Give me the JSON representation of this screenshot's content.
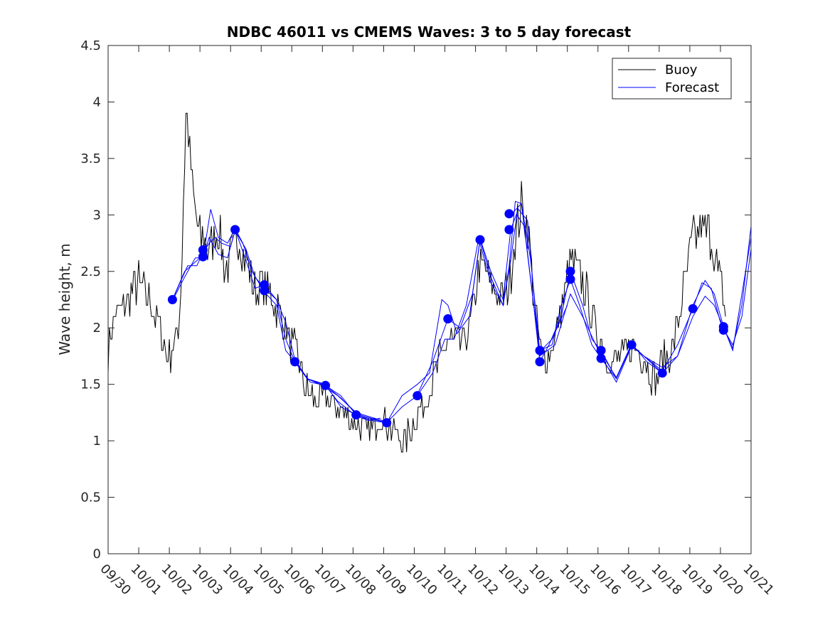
{
  "chart_data": {
    "type": "line",
    "title": "NDBC 46011 vs CMEMS Waves: 3 to 5 day forecast",
    "xlabel": "",
    "ylabel": "Wave height, m",
    "xlim": [
      0,
      21
    ],
    "ylim": [
      0,
      4.5
    ],
    "xticks": [
      0,
      1,
      2,
      3,
      4,
      5,
      6,
      7,
      8,
      9,
      10,
      11,
      12,
      13,
      14,
      15,
      16,
      17,
      18,
      19,
      20,
      21
    ],
    "xtick_labels": [
      "09/30",
      "10/01",
      "10/02",
      "10/03",
      "10/04",
      "10/05",
      "10/06",
      "10/07",
      "10/08",
      "10/09",
      "10/10",
      "10/11",
      "10/12",
      "10/13",
      "10/14",
      "10/15",
      "10/16",
      "10/17",
      "10/18",
      "10/19",
      "10/20",
      "10/21"
    ],
    "yticks": [
      0,
      0.5,
      1,
      1.5,
      2,
      2.5,
      3,
      3.5,
      4,
      4.5
    ],
    "ytick_labels": [
      "0",
      "0.5",
      "1",
      "1.5",
      "2",
      "2.5",
      "3",
      "3.5",
      "4",
      "4.5"
    ],
    "grid": false,
    "legend": {
      "position": "top-right",
      "entries": [
        "Buoy",
        "Forecast"
      ]
    },
    "colors": {
      "buoy": "#000000",
      "forecast": "#0000ff",
      "axis": "#262626"
    },
    "series": [
      {
        "name": "Buoy",
        "color": "#000000",
        "anchors": [
          [
            0,
            1.8
          ],
          [
            0.2,
            2.1
          ],
          [
            0.5,
            2.2
          ],
          [
            0.8,
            2.3
          ],
          [
            1.0,
            2.4
          ],
          [
            1.2,
            2.3
          ],
          [
            1.5,
            2.15
          ],
          [
            1.7,
            2.0
          ],
          [
            1.9,
            1.75
          ],
          [
            2.1,
            1.8
          ],
          [
            2.3,
            2.0
          ],
          [
            2.4,
            2.5
          ],
          [
            2.5,
            3.5
          ],
          [
            2.55,
            4.0
          ],
          [
            2.65,
            3.6
          ],
          [
            2.8,
            3.1
          ],
          [
            3.0,
            2.8
          ],
          [
            3.3,
            2.7
          ],
          [
            3.6,
            2.9
          ],
          [
            3.8,
            2.5
          ],
          [
            4.0,
            2.6
          ],
          [
            4.2,
            2.85
          ],
          [
            4.5,
            2.6
          ],
          [
            4.8,
            2.3
          ],
          [
            5.0,
            2.4
          ],
          [
            5.3,
            2.3
          ],
          [
            5.5,
            2.2
          ],
          [
            5.8,
            2.0
          ],
          [
            6.0,
            1.85
          ],
          [
            6.2,
            1.75
          ],
          [
            6.4,
            1.5
          ],
          [
            6.6,
            1.4
          ],
          [
            6.9,
            1.35
          ],
          [
            7.1,
            1.4
          ],
          [
            7.4,
            1.3
          ],
          [
            7.7,
            1.25
          ],
          [
            8.0,
            1.15
          ],
          [
            8.3,
            1.1
          ],
          [
            8.6,
            1.1
          ],
          [
            8.9,
            1.2
          ],
          [
            9.1,
            1.15
          ],
          [
            9.3,
            1.1
          ],
          [
            9.6,
            1.0
          ],
          [
            9.8,
            1.05
          ],
          [
            10.1,
            1.2
          ],
          [
            10.4,
            1.4
          ],
          [
            10.7,
            1.6
          ],
          [
            11.0,
            1.85
          ],
          [
            11.3,
            1.9
          ],
          [
            11.6,
            1.85
          ],
          [
            11.9,
            2.1
          ],
          [
            12.1,
            2.5
          ],
          [
            12.3,
            2.55
          ],
          [
            12.6,
            2.3
          ],
          [
            12.9,
            2.25
          ],
          [
            13.1,
            2.4
          ],
          [
            13.3,
            2.8
          ],
          [
            13.5,
            3.1
          ],
          [
            13.7,
            2.9
          ],
          [
            13.9,
            2.3
          ],
          [
            14.1,
            1.8
          ],
          [
            14.3,
            1.7
          ],
          [
            14.6,
            1.9
          ],
          [
            14.9,
            2.3
          ],
          [
            15.1,
            2.6
          ],
          [
            15.3,
            2.5
          ],
          [
            15.6,
            2.35
          ],
          [
            15.9,
            2.0
          ],
          [
            16.1,
            1.85
          ],
          [
            16.3,
            1.7
          ],
          [
            16.6,
            1.7
          ],
          [
            16.8,
            1.75
          ],
          [
            17.1,
            1.85
          ],
          [
            17.4,
            1.8
          ],
          [
            17.7,
            1.6
          ],
          [
            17.9,
            1.55
          ],
          [
            18.1,
            1.7
          ],
          [
            18.4,
            1.8
          ],
          [
            18.6,
            2.0
          ],
          [
            18.9,
            2.5
          ],
          [
            19.1,
            2.8
          ],
          [
            19.4,
            2.9
          ],
          [
            19.7,
            2.8
          ],
          [
            19.9,
            2.5
          ],
          [
            20.1,
            2.3
          ],
          [
            20.2,
            2.0
          ]
        ]
      },
      {
        "name": "Forecast",
        "color": "#0000ff",
        "runs": [
          [
            [
              2.1,
              2.25
            ],
            [
              2.5,
              2.5
            ],
            [
              3.0,
              2.62
            ],
            [
              3.3,
              2.75
            ],
            [
              3.5,
              2.8
            ],
            [
              3.7,
              2.75
            ],
            [
              4.0,
              2.72
            ],
            [
              4.15,
              2.86
            ],
            [
              4.5,
              2.7
            ],
            [
              4.8,
              2.45
            ],
            [
              5.1,
              2.35
            ],
            [
              5.5,
              2.25
            ],
            [
              5.8,
              2.05
            ],
            [
              6.1,
              1.72
            ],
            [
              6.5,
              1.55
            ],
            [
              7.1,
              1.49
            ],
            [
              7.5,
              1.35
            ],
            [
              8.1,
              1.22
            ],
            [
              8.5,
              1.18
            ],
            [
              8.9,
              1.2
            ]
          ],
          [
            [
              2.1,
              2.24
            ],
            [
              2.5,
              2.45
            ],
            [
              2.85,
              2.62
            ],
            [
              3.1,
              2.62
            ],
            [
              3.3,
              2.8
            ],
            [
              3.6,
              2.65
            ],
            [
              3.9,
              2.62
            ],
            [
              4.15,
              2.87
            ],
            [
              4.5,
              2.6
            ],
            [
              4.8,
              2.35
            ],
            [
              5.1,
              2.38
            ],
            [
              5.5,
              2.25
            ],
            [
              5.8,
              1.9
            ],
            [
              6.1,
              1.7
            ],
            [
              6.5,
              1.55
            ],
            [
              7.0,
              1.49
            ],
            [
              7.5,
              1.4
            ],
            [
              8.1,
              1.25
            ],
            [
              8.7,
              1.2
            ],
            [
              9.1,
              1.17
            ]
          ],
          [
            [
              2.1,
              2.25
            ],
            [
              2.6,
              2.55
            ],
            [
              2.9,
              2.55
            ],
            [
              3.15,
              2.7
            ],
            [
              3.35,
              3.05
            ],
            [
              3.6,
              2.8
            ],
            [
              3.9,
              2.75
            ],
            [
              4.15,
              2.88
            ],
            [
              4.4,
              2.75
            ],
            [
              4.7,
              2.5
            ],
            [
              5.1,
              2.32
            ],
            [
              5.5,
              2.2
            ],
            [
              5.8,
              1.8
            ],
            [
              6.1,
              1.7
            ],
            [
              6.5,
              1.55
            ],
            [
              7.1,
              1.5
            ],
            [
              7.6,
              1.3
            ],
            [
              8.1,
              1.23
            ],
            [
              8.5,
              1.2
            ],
            [
              9.1,
              1.16
            ]
          ],
          [
            [
              6.1,
              1.71
            ],
            [
              6.6,
              1.52
            ],
            [
              7.1,
              1.49
            ],
            [
              7.6,
              1.38
            ],
            [
              8.1,
              1.24
            ],
            [
              8.6,
              1.2
            ],
            [
              9.1,
              1.16
            ],
            [
              9.6,
              1.3
            ],
            [
              10.1,
              1.4
            ],
            [
              10.6,
              1.6
            ],
            [
              11.0,
              1.9
            ],
            [
              11.3,
              1.9
            ],
            [
              11.7,
              2.2
            ],
            [
              12.1,
              2.79
            ],
            [
              12.5,
              2.4
            ],
            [
              12.9,
              2.2
            ],
            [
              13.1,
              2.55
            ],
            [
              13.3,
              3.12
            ],
            [
              13.5,
              3.1
            ],
            [
              13.8,
              2.6
            ],
            [
              14.1,
              1.79
            ],
            [
              14.5,
              1.9
            ],
            [
              15.0,
              2.2
            ]
          ],
          [
            [
              7.1,
              1.49
            ],
            [
              7.6,
              1.4
            ],
            [
              8.1,
              1.23
            ],
            [
              8.6,
              1.18
            ],
            [
              9.1,
              1.16
            ],
            [
              9.6,
              1.4
            ],
            [
              10.1,
              1.5
            ],
            [
              10.5,
              1.6
            ],
            [
              10.9,
              2.25
            ],
            [
              11.1,
              2.2
            ],
            [
              11.4,
              1.95
            ],
            [
              11.8,
              2.1
            ],
            [
              12.15,
              2.78
            ],
            [
              12.5,
              2.45
            ],
            [
              12.9,
              2.2
            ],
            [
              13.15,
              2.6
            ],
            [
              13.35,
              3.0
            ],
            [
              13.6,
              2.9
            ],
            [
              13.9,
              2.2
            ],
            [
              14.1,
              1.7
            ],
            [
              14.4,
              1.85
            ],
            [
              14.8,
              2.1
            ],
            [
              15.1,
              2.5
            ],
            [
              15.5,
              2.2
            ],
            [
              15.8,
              1.9
            ],
            [
              16.1,
              1.8
            ],
            [
              16.6,
              1.55
            ],
            [
              17.1,
              1.85
            ],
            [
              17.5,
              1.75
            ],
            [
              17.9,
              1.65
            ],
            [
              18.1,
              1.6
            ]
          ],
          [
            [
              10.1,
              1.41
            ],
            [
              10.6,
              1.7
            ],
            [
              11.1,
              2.08
            ],
            [
              11.5,
              2.0
            ],
            [
              11.9,
              2.3
            ],
            [
              12.15,
              2.79
            ],
            [
              12.5,
              2.5
            ],
            [
              12.9,
              2.25
            ],
            [
              13.15,
              2.87
            ],
            [
              13.4,
              3.05
            ],
            [
              13.7,
              2.95
            ],
            [
              14.0,
              2.0
            ],
            [
              14.1,
              1.8
            ],
            [
              14.5,
              1.85
            ],
            [
              14.8,
              2.2
            ],
            [
              15.1,
              2.43
            ],
            [
              15.4,
              2.2
            ],
            [
              15.8,
              1.85
            ],
            [
              16.1,
              1.73
            ],
            [
              16.6,
              1.55
            ],
            [
              17.1,
              1.85
            ],
            [
              17.5,
              1.75
            ],
            [
              18.1,
              1.62
            ],
            [
              18.6,
              1.85
            ],
            [
              19.1,
              2.17
            ],
            [
              19.4,
              2.4
            ],
            [
              19.7,
              2.35
            ],
            [
              20.0,
              2.05
            ],
            [
              20.1,
              1.99
            ],
            [
              20.4,
              1.85
            ],
            [
              20.7,
              2.1
            ],
            [
              21.0,
              2.7
            ]
          ],
          [
            [
              13.15,
              3.0
            ],
            [
              13.5,
              3.1
            ],
            [
              13.9,
              2.2
            ],
            [
              14.1,
              1.75
            ],
            [
              14.6,
              1.85
            ],
            [
              15.1,
              2.3
            ],
            [
              15.5,
              2.1
            ],
            [
              16.1,
              1.75
            ],
            [
              16.6,
              1.52
            ],
            [
              17.1,
              1.84
            ],
            [
              17.5,
              1.75
            ],
            [
              18.1,
              1.65
            ],
            [
              18.6,
              1.75
            ],
            [
              19.1,
              2.1
            ],
            [
              19.5,
              2.28
            ],
            [
              19.8,
              2.2
            ],
            [
              20.1,
              2.0
            ],
            [
              20.4,
              1.82
            ],
            [
              20.7,
              2.2
            ],
            [
              21.0,
              2.9
            ]
          ],
          [
            [
              16.1,
              1.78
            ],
            [
              16.6,
              1.56
            ],
            [
              17.1,
              1.86
            ],
            [
              17.6,
              1.7
            ],
            [
              18.1,
              1.6
            ],
            [
              18.6,
              1.75
            ],
            [
              19.1,
              2.2
            ],
            [
              19.5,
              2.42
            ],
            [
              19.8,
              2.3
            ],
            [
              20.1,
              2.01
            ],
            [
              20.4,
              1.8
            ],
            [
              20.7,
              2.3
            ],
            [
              21.0,
              2.8
            ]
          ]
        ]
      }
    ],
    "forecast_markers": [
      [
        2.1,
        2.25
      ],
      [
        3.1,
        2.69
      ],
      [
        3.1,
        2.63
      ],
      [
        4.15,
        2.87
      ],
      [
        5.1,
        2.38
      ],
      [
        5.1,
        2.33
      ],
      [
        6.1,
        1.7
      ],
      [
        7.1,
        1.49
      ],
      [
        8.1,
        1.23
      ],
      [
        9.1,
        1.16
      ],
      [
        10.1,
        1.4
      ],
      [
        11.1,
        2.08
      ],
      [
        12.15,
        2.78
      ],
      [
        13.1,
        3.01
      ],
      [
        13.1,
        2.87
      ],
      [
        14.1,
        1.8
      ],
      [
        14.1,
        1.7
      ],
      [
        15.1,
        2.5
      ],
      [
        15.1,
        2.43
      ],
      [
        16.1,
        1.8
      ],
      [
        16.1,
        1.73
      ],
      [
        17.1,
        1.85
      ],
      [
        18.1,
        1.6
      ],
      [
        19.1,
        2.17
      ],
      [
        20.1,
        2.01
      ],
      [
        20.1,
        1.98
      ]
    ]
  }
}
